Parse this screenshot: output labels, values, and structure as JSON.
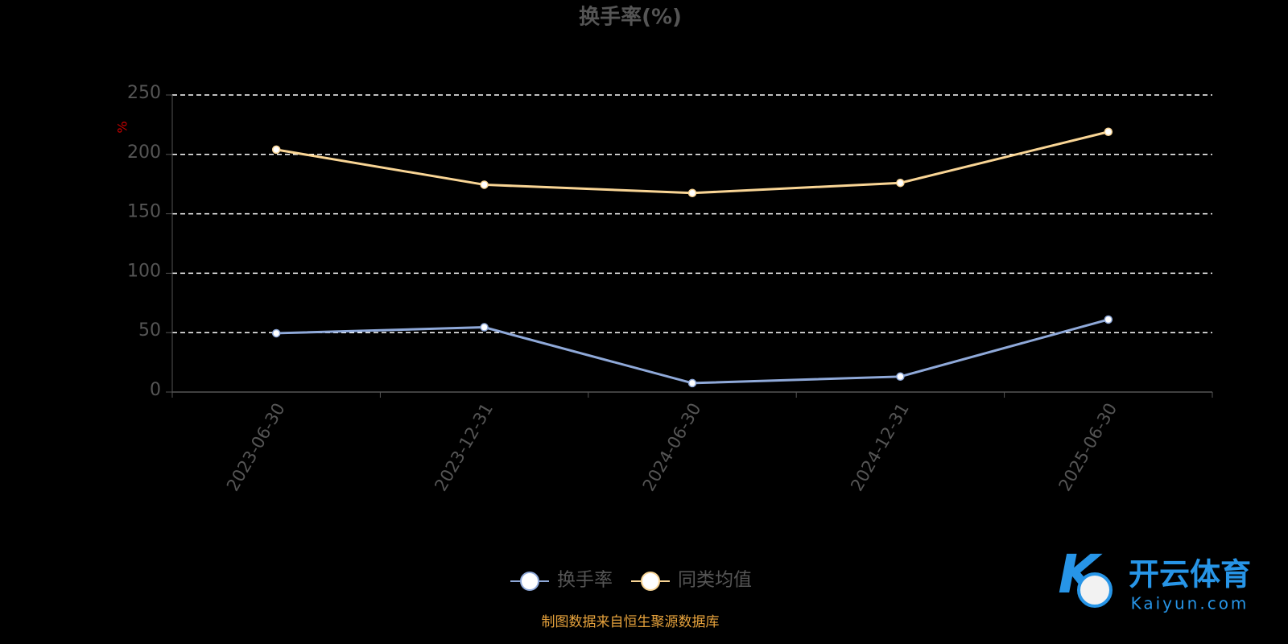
{
  "chart_data": {
    "type": "line",
    "title": "换手率(%)",
    "y_label": "%",
    "categories": [
      "2023-06-30",
      "2023-12-31",
      "2024-06-30",
      "2024-12-31",
      "2025-06-30"
    ],
    "series": [
      {
        "name": "换手率",
        "color": "#8fa9d9",
        "values": [
          49.5,
          54.5,
          7.5,
          13,
          61
        ]
      },
      {
        "name": "同类均值",
        "color": "#f9d595",
        "values": [
          204,
          174.5,
          167.5,
          176,
          219
        ]
      }
    ],
    "ylim": [
      0,
      250
    ],
    "yticks": [
      0,
      50,
      100,
      150,
      200,
      250
    ],
    "grid": true,
    "legend": "bottom",
    "footer": "制图数据来自恒生聚源数据库"
  },
  "watermark": {
    "brand": "开云体育",
    "site": "Kaiyun.com"
  }
}
